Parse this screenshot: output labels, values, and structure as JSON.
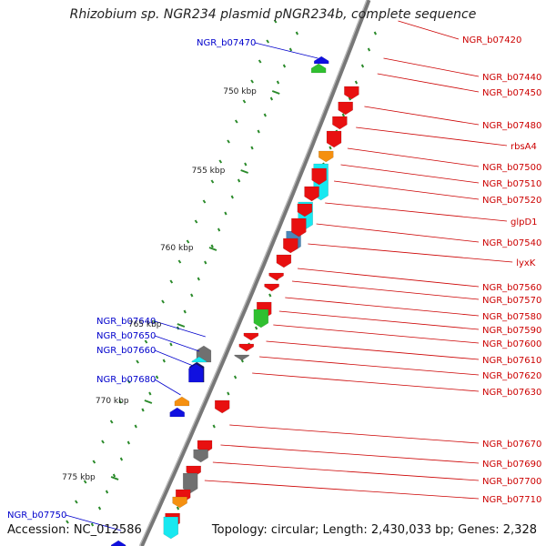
{
  "title": "Rhizobium sp. NGR234 plasmid pNGR234b, complete sequence",
  "footer": {
    "accession": "Accession: NC_012586",
    "topology": "Topology: circular; Length: 2,430,033 bp; Genes: 2,328"
  },
  "kbp_labels": [
    "750 kbp",
    "755 kbp",
    "760 kbp",
    "765 kbp",
    "770 kbp",
    "775 kbp"
  ],
  "right_labels": [
    "NGR_b07420",
    "NGR_b07440",
    "NGR_b07450",
    "NGR_b07480",
    "rbsA4",
    "NGR_b07500",
    "NGR_b07510",
    "NGR_b07520",
    "glpD1",
    "NGR_b07540",
    "lyxK",
    "NGR_b07560",
    "NGR_b07570",
    "NGR_b07580",
    "NGR_b07590",
    "NGR_b07600",
    "NGR_b07610",
    "NGR_b07620",
    "NGR_b07630",
    "NGR_b07670",
    "NGR_b07690",
    "NGR_b07700",
    "NGR_b07710"
  ],
  "left_labels": [
    "NGR_b07470",
    "NGR_b07640",
    "NGR_b07650",
    "NGR_b07660",
    "NGR_b07680",
    "NGR_b07750"
  ],
  "colors": {
    "forward_gene": "#e81010",
    "reverse_gene": "#1010e0",
    "right_label": "#cc0000",
    "left_label": "#0000cc",
    "tick": "#2a8a2a",
    "backbone": "#777777",
    "cyan_gene": "#18e8f0",
    "orange_gene": "#f59010",
    "steel_gene": "#4a86b8",
    "green_gene": "#30c030",
    "gray_gene": "#707070",
    "navy_gene": "#12126a"
  }
}
